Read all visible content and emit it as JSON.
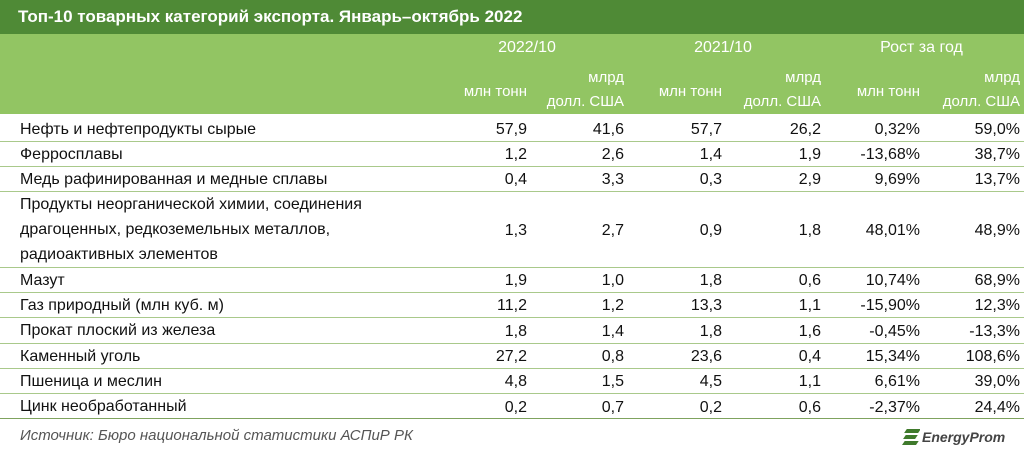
{
  "title": "Топ-10 товарных категорий экспорта. Январь–октябрь 2022",
  "table": {
    "groups": [
      "2022/10",
      "2021/10",
      "Рост за год"
    ],
    "units": [
      "млн тонн",
      "млрд\nдолл. США",
      "млн тонн",
      "млрд\nдолл. США",
      "млн тонн",
      "млрд\nдолл. США"
    ],
    "rows": [
      [
        "Нефть и нефтепродукты сырые",
        "57,9",
        "41,6",
        "57,7",
        "26,2",
        "0,32%",
        "59,0%"
      ],
      [
        "Ферросплавы",
        "1,2",
        "2,6",
        "1,4",
        "1,9",
        "-13,68%",
        "38,7%"
      ],
      [
        "Медь рафинированная и медные сплавы",
        "0,4",
        "3,3",
        "0,3",
        "2,9",
        "9,69%",
        "13,7%"
      ],
      [
        "Продукты неорганической химии, соединения драгоценных, редкоземельных металлов, радиоактивных элементов",
        "1,3",
        "2,7",
        "0,9",
        "1,8",
        "48,01%",
        "48,9%"
      ],
      [
        "Мазут",
        "1,9",
        "1,0",
        "1,8",
        "0,6",
        "10,74%",
        "68,9%"
      ],
      [
        "Газ природный (млн куб. м)",
        "11,2",
        "1,2",
        "13,3",
        "1,1",
        "-15,90%",
        "12,3%"
      ],
      [
        "Прокат плоский из железа",
        "1,8",
        "1,4",
        "1,8",
        "1,6",
        "-0,45%",
        "-13,3%"
      ],
      [
        "Каменный уголь",
        "27,2",
        "0,8",
        "23,6",
        "0,4",
        "15,34%",
        "108,6%"
      ],
      [
        "Пшеница и меслин",
        "4,8",
        "1,5",
        "4,5",
        "1,1",
        "6,61%",
        "39,0%"
      ],
      [
        "Цинк необработанный",
        "0,2",
        "0,7",
        "0,2",
        "0,6",
        "-2,37%",
        "24,4%"
      ]
    ]
  },
  "footer": {
    "source": "Источник: Бюро национальной статистики АСПиР РК",
    "logo": "EnergyProm"
  }
}
